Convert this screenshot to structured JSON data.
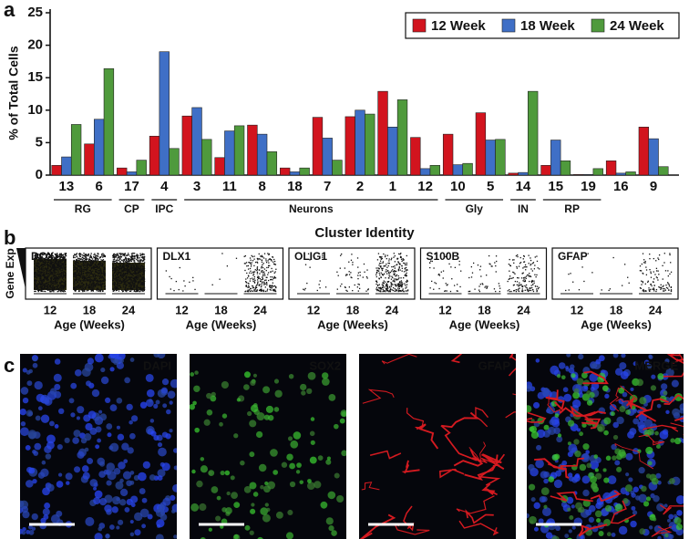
{
  "panel_labels": [
    "a",
    "b",
    "c"
  ],
  "chart_data": {
    "type": "bar",
    "ylabel": "% of Total Cells",
    "xlabel": "Cluster Identity",
    "categories": [
      "13",
      "6",
      "17",
      "4",
      "3",
      "11",
      "8",
      "18",
      "7",
      "2",
      "1",
      "12",
      "10",
      "5",
      "14",
      "15",
      "19",
      "16",
      "9"
    ],
    "groups": [
      "RG",
      "RG",
      "CP",
      "IPC",
      "Neurons",
      "Neurons",
      "Neurons",
      "Neurons",
      "Neurons",
      "Neurons",
      "Neurons",
      "Neurons",
      "Gly",
      "Gly",
      "IN",
      "RP",
      "RP",
      null,
      null
    ],
    "series": [
      {
        "name": "12 Week",
        "color": "#d2141e",
        "values": [
          1.5,
          4.8,
          1.1,
          6.0,
          9.1,
          2.7,
          7.7,
          1.1,
          8.9,
          9.0,
          12.9,
          5.8,
          6.3,
          9.6,
          0.3,
          1.5,
          0.1,
          2.2,
          7.4
        ]
      },
      {
        "name": "18 Week",
        "color": "#3f6fc6",
        "values": [
          2.8,
          8.6,
          0.5,
          19.0,
          10.4,
          6.8,
          6.3,
          0.5,
          5.7,
          10.0,
          7.4,
          1.0,
          1.6,
          5.4,
          0.4,
          5.4,
          0.1,
          0.3,
          5.6
        ]
      },
      {
        "name": "24 Week",
        "color": "#4f9a3c",
        "values": [
          7.8,
          16.4,
          2.3,
          4.1,
          5.5,
          7.6,
          3.6,
          1.1,
          2.3,
          9.4,
          11.6,
          1.5,
          1.8,
          5.5,
          12.9,
          2.2,
          1.0,
          0.5,
          1.3
        ]
      }
    ],
    "ylim": [
      0,
      25
    ],
    "yticks": [
      0,
      5,
      10,
      15,
      20,
      25
    ],
    "legend": "upper right"
  },
  "expression": {
    "ylabel": "Gene Exp",
    "xlabel": "Age (Weeks)",
    "ages": [
      "12",
      "18",
      "24"
    ],
    "genes": [
      "DCX",
      "DLX1",
      "OLIG1",
      "S100B",
      "GFAP"
    ]
  },
  "images": [
    {
      "label": "DAPI",
      "color": "#2a7bff"
    },
    {
      "label": "SOX2",
      "color": "#c8d23a"
    },
    {
      "label": "GFAP",
      "color": "#e0222a"
    },
    {
      "label": "MERGE",
      "color": "#ffffff"
    }
  ]
}
